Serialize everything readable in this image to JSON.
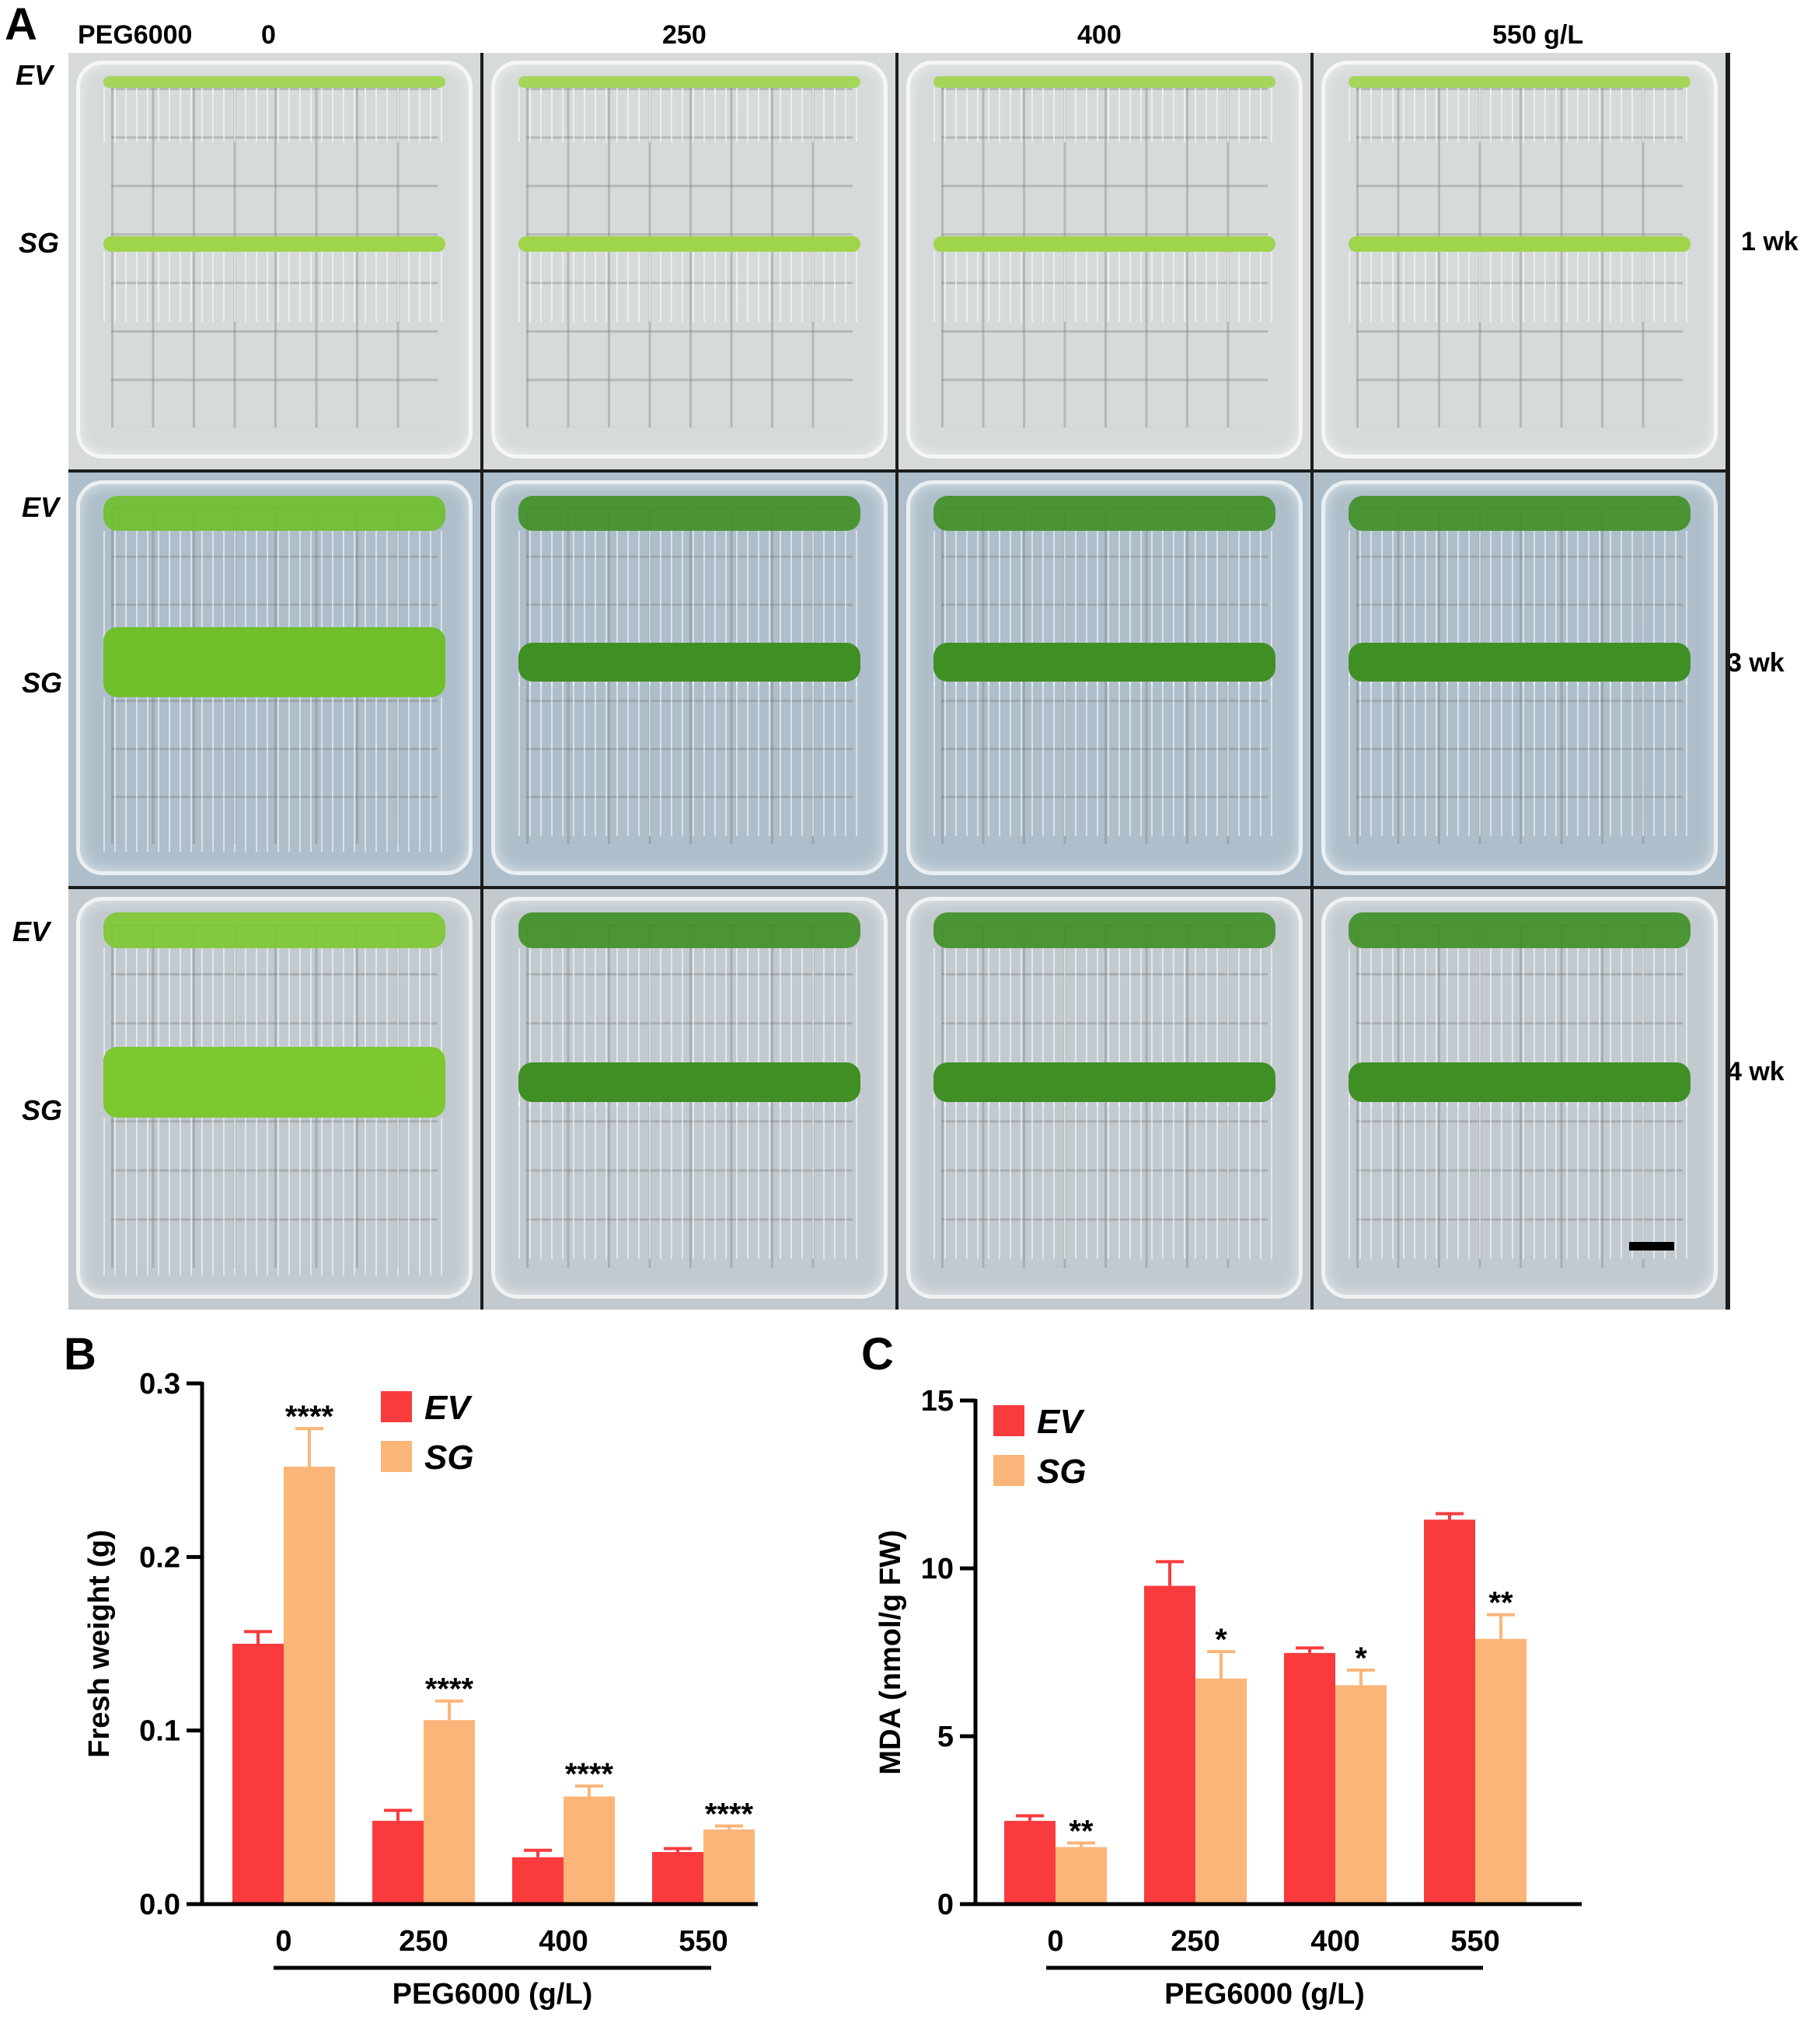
{
  "panel_a": {
    "letter": "A",
    "treatment_label": "PEG6000",
    "concentrations": [
      "0",
      "250",
      "400",
      "550 g/L"
    ],
    "row_labels": [
      {
        "top": "EV",
        "bottom": "SG",
        "time": "1 wk",
        "stage": 1
      },
      {
        "top": "EV",
        "bottom": "SG",
        "time": "3 wk",
        "stage": 3
      },
      {
        "top": "EV",
        "bottom": "SG",
        "time": "4 wk",
        "stage": 4
      }
    ]
  },
  "colors": {
    "EV": "#f93b3e",
    "SG": "#fbb578"
  },
  "chart_data": [
    {
      "panel": "B",
      "type": "bar",
      "ylabel": "Fresh weight (g)",
      "xlabel": "PEG6000 (g/L)",
      "categories": [
        "0",
        "250",
        "400",
        "550"
      ],
      "ylim": [
        0,
        0.3
      ],
      "yticks": [
        "0.0",
        "0.1",
        "0.2",
        "0.3"
      ],
      "yticks_values": [
        0,
        0.1,
        0.2,
        0.3
      ],
      "legend_position": "top-right",
      "series": [
        {
          "name": "EV",
          "values": [
            0.15,
            0.048,
            0.027,
            0.03
          ],
          "errors": [
            0.007,
            0.006,
            0.004,
            0.002
          ]
        },
        {
          "name": "SG",
          "values": [
            0.252,
            0.106,
            0.062,
            0.043
          ],
          "errors": [
            0.022,
            0.011,
            0.006,
            0.002
          ]
        }
      ],
      "significance": [
        "****",
        "****",
        "****",
        "****"
      ]
    },
    {
      "panel": "C",
      "type": "bar",
      "ylabel": "MDA (nmol/g FW)",
      "xlabel": "PEG6000 (g/L)",
      "categories": [
        "0",
        "250",
        "400",
        "550"
      ],
      "ylim": [
        0,
        15
      ],
      "yticks": [
        "0",
        "5",
        "10",
        "15"
      ],
      "yticks_values": [
        0,
        5,
        10,
        15
      ],
      "legend_position": "top-left",
      "series": [
        {
          "name": "EV",
          "values": [
            2.48,
            9.48,
            7.48,
            11.45
          ],
          "errors": [
            0.15,
            0.72,
            0.15,
            0.18
          ]
        },
        {
          "name": "SG",
          "values": [
            1.7,
            6.72,
            6.52,
            7.9
          ],
          "errors": [
            0.12,
            0.8,
            0.45,
            0.72
          ]
        }
      ],
      "significance": [
        "**",
        "*",
        "*",
        "**"
      ]
    }
  ]
}
